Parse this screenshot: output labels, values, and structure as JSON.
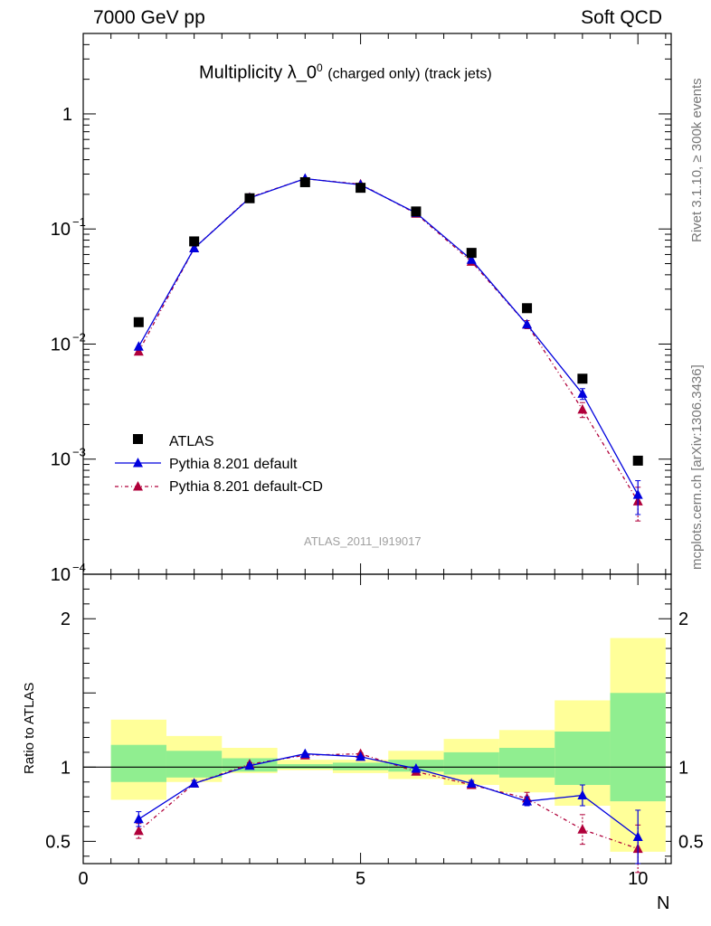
{
  "header": {
    "left": "7000 GeV pp",
    "right": "Soft QCD"
  },
  "title": {
    "main": "Multiplicity λ_0",
    "superscript": "0",
    "suffix": "(charged only) (track jets)"
  },
  "side_labels": {
    "top": "Rivet 3.1.10, ≥ 300k events",
    "bottom": "mcplots.cern.ch [arXiv:1306.3436]"
  },
  "watermark": "ATLAS_2011_I919017",
  "legend": {
    "atlas": "ATLAS",
    "pythia_default": "Pythia 8.201 default",
    "pythia_cd": "Pythia 8.201 default-CD"
  },
  "ratio_ylabel": "Ratio to ATLAS",
  "xlabel": "N",
  "colors": {
    "data": "#000000",
    "pythia_default": "#0000dd",
    "pythia_cd": "#b0003a",
    "band_inner": "#90ee90",
    "band_outer": "#ffff99"
  },
  "chart_data": [
    {
      "type": "scatter",
      "panel": "main",
      "y_scale": "log",
      "xlim": [
        0,
        10.6
      ],
      "ylim": [
        0.0001,
        5
      ],
      "y_ticks": [
        {
          "value": 0.0001,
          "base": "10",
          "exp": "−4"
        },
        {
          "value": 0.001,
          "base": "10",
          "exp": "−3"
        },
        {
          "value": 0.01,
          "base": "10",
          "exp": "−2"
        },
        {
          "value": 0.1,
          "base": "10",
          "exp": "−1"
        },
        {
          "value": 1,
          "base": "1",
          "exp": ""
        }
      ],
      "series": [
        {
          "name": "ATLAS",
          "x": [
            1,
            2,
            3,
            4,
            5,
            6,
            7,
            8,
            9,
            10
          ],
          "y": [
            0.0155,
            0.078,
            0.185,
            0.255,
            0.228,
            0.142,
            0.062,
            0.0205,
            0.005,
            0.00097
          ]
        },
        {
          "name": "Pythia 8.201 default",
          "x": [
            1,
            2,
            3,
            4,
            5,
            6,
            7,
            8,
            9,
            10
          ],
          "y": [
            0.0095,
            0.068,
            0.186,
            0.274,
            0.242,
            0.138,
            0.054,
            0.0148,
            0.0037,
            0.00049
          ],
          "err": [
            0,
            0,
            0,
            0,
            0,
            0,
            0,
            0,
            0.0004,
            0.00016
          ]
        },
        {
          "name": "Pythia 8.201 default-CD",
          "x": [
            1,
            2,
            3,
            4,
            5,
            6,
            7,
            8,
            9,
            10
          ],
          "y": [
            0.0086,
            0.068,
            0.188,
            0.273,
            0.245,
            0.136,
            0.052,
            0.0148,
            0.0027,
            0.00043
          ],
          "err": [
            0,
            0,
            0,
            0,
            0,
            0,
            0,
            0.0012,
            0.0004,
            0.00014
          ]
        }
      ]
    },
    {
      "type": "scatter",
      "panel": "ratio",
      "xlim": [
        0,
        10.6
      ],
      "ylim": [
        0.35,
        2.3
      ],
      "x_ticks": [
        0,
        5,
        10
      ],
      "y_ticks": [
        0.5,
        1,
        2
      ],
      "bands": {
        "x_low": [
          0.5,
          1.5,
          2.5,
          3.5,
          4.5,
          5.5,
          6.5,
          7.5,
          8.5,
          9.5
        ],
        "x_high": [
          1.5,
          2.5,
          3.5,
          4.5,
          5.5,
          6.5,
          7.5,
          8.5,
          9.5,
          10.5
        ],
        "inner_low": [
          0.9,
          0.93,
          0.97,
          0.99,
          0.98,
          0.97,
          0.95,
          0.93,
          0.88,
          0.77
        ],
        "inner_high": [
          1.15,
          1.11,
          1.06,
          1.02,
          1.03,
          1.05,
          1.1,
          1.13,
          1.24,
          1.5
        ],
        "outer_low": [
          0.78,
          0.9,
          0.96,
          0.98,
          0.96,
          0.92,
          0.88,
          0.83,
          0.74,
          0.43
        ],
        "outer_high": [
          1.32,
          1.21,
          1.13,
          1.05,
          1.05,
          1.11,
          1.19,
          1.25,
          1.45,
          1.87
        ]
      },
      "series": [
        {
          "name": "Pythia 8.201 default",
          "x": [
            1,
            2,
            3,
            4,
            5,
            6,
            7,
            8,
            9,
            10
          ],
          "y": [
            0.65,
            0.89,
            1.01,
            1.09,
            1.07,
            0.99,
            0.89,
            0.77,
            0.81,
            0.53
          ],
          "err": [
            0.05,
            0.02,
            0.01,
            0.005,
            0.005,
            0.01,
            0.02,
            0.03,
            0.07,
            0.18
          ]
        },
        {
          "name": "Pythia 8.201 default-CD",
          "x": [
            1,
            2,
            3,
            4,
            5,
            6,
            7,
            8,
            9,
            10
          ],
          "y": [
            0.57,
            0.89,
            1.02,
            1.08,
            1.09,
            0.97,
            0.88,
            0.79,
            0.58,
            0.45
          ],
          "err": [
            0.05,
            0.02,
            0.01,
            0.005,
            0.005,
            0.01,
            0.02,
            0.04,
            0.1,
            0.16
          ]
        }
      ]
    }
  ]
}
